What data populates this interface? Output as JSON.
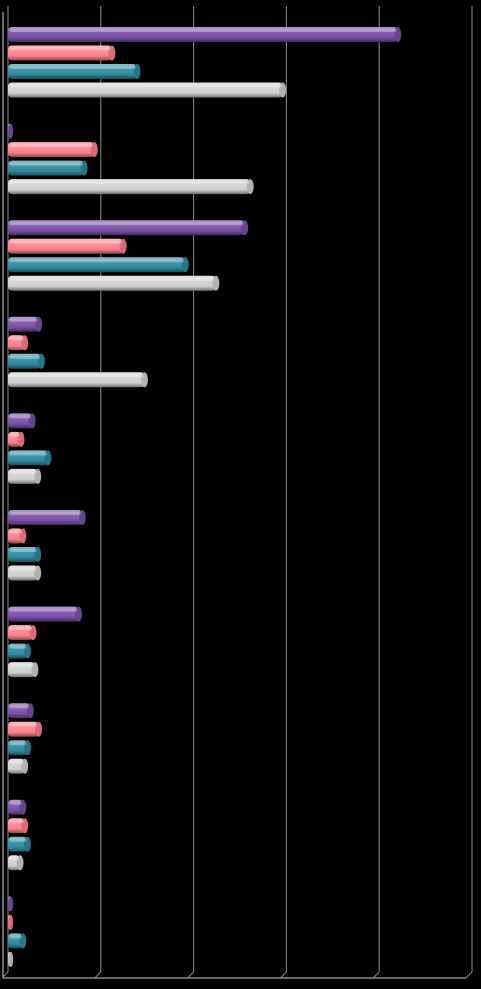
{
  "chart_data": {
    "type": "bar",
    "orientation": "horizontal",
    "style": "3d-cylinder",
    "title": "",
    "xlabel": "",
    "ylabel": "",
    "categories": [
      "",
      "",
      "",
      "",
      "",
      "",
      "",
      "",
      "",
      ""
    ],
    "series": [
      {
        "color": "#7a4fa8",
        "values": [
          42,
          0.3,
          25.5,
          3.3,
          2.6,
          8,
          7.6,
          2.4,
          1.6,
          0.3
        ]
      },
      {
        "color": "#ff7f8c",
        "values": [
          11.2,
          9.3,
          12.4,
          1.8,
          1.4,
          1.6,
          2.7,
          3.3,
          1.8,
          0.3
        ]
      },
      {
        "color": "#2e8aa0",
        "values": [
          13.9,
          8.2,
          19.1,
          3.6,
          4.3,
          3.2,
          2.1,
          2.1,
          2.1,
          1.6
        ]
      },
      {
        "color": "#d0d0d0",
        "values": [
          29.6,
          26.1,
          22.4,
          14.7,
          3.2,
          3.2,
          2.9,
          1.8,
          1.3,
          0.3
        ]
      }
    ],
    "xlim": [
      0,
      50
    ],
    "grid": true,
    "legend": "none",
    "palette": {
      "background": "#000000",
      "gridline": "#8c8c8c"
    }
  }
}
